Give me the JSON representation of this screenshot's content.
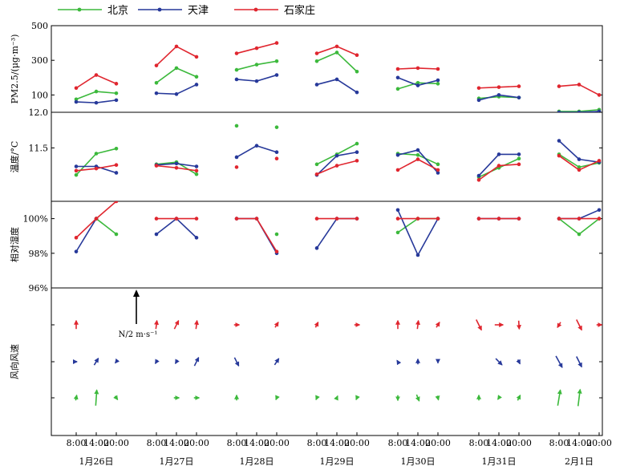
{
  "chart_data": {
    "type": "line",
    "legend": {
      "placement": "top",
      "entries": [
        {
          "name": "北京",
          "color": "#3cb93c"
        },
        {
          "name": "天津",
          "color": "#27399a"
        },
        {
          "name": "石家庄",
          "color": "#e0262f"
        }
      ]
    },
    "x_time_labels": [
      "8:00",
      "14:00",
      "20:00"
    ],
    "dates": [
      "1月26日",
      "1月27日",
      "1月28日",
      "1月29日",
      "1月30日",
      "1月31日",
      "2月1日"
    ],
    "panels": [
      {
        "ylabel": "PM2.5/(μg·m⁻³)",
        "yticks": [
          "500",
          "300",
          "100"
        ],
        "tick_values": [
          500,
          300,
          100
        ],
        "ylim": [
          0,
          500
        ],
        "series": [
          {
            "name": "北京",
            "values": [
              [
                75,
                120,
                110
              ],
              [
                170,
                255,
                205
              ],
              [
                245,
                275,
                295
              ],
              [
                295,
                345,
                235
              ],
              [
                135,
                170,
                165
              ],
              [
                80,
                90,
                85
              ],
              [
                5,
                5,
                15
              ]
            ]
          },
          {
            "name": "天津",
            "values": [
              [
                60,
                55,
                70
              ],
              [
                110,
                105,
                160
              ],
              [
                190,
                180,
                215
              ],
              [
                160,
                190,
                115
              ],
              [
                200,
                155,
                185
              ],
              [
                70,
                100,
                85
              ],
              [
                0,
                0,
                5
              ]
            ]
          },
          {
            "name": "石家庄",
            "values": [
              [
                140,
                215,
                165
              ],
              [
                270,
                380,
                320
              ],
              [
                340,
                370,
                400
              ],
              [
                340,
                380,
                330
              ],
              [
                250,
                255,
                250
              ],
              [
                140,
                145,
                150
              ],
              [
                150,
                160,
                100
              ]
            ]
          }
        ]
      },
      {
        "ylabel": "温度/°C",
        "yticks": [
          "12.0",
          "11.5"
        ],
        "tick_values": [
          12.0,
          11.5
        ],
        "ylim": [
          10.75,
          12.0
        ],
        "series": [
          {
            "name": "北京",
            "values": [
              [
                11.12,
                11.42,
                11.49
              ],
              [
                11.27,
                11.3,
                11.13
              ],
              [
                11.81,
                null,
                11.79
              ],
              [
                11.27,
                11.41,
                11.56
              ],
              [
                11.42,
                11.4,
                11.27
              ],
              [
                11.09,
                11.22,
                11.35
              ],
              [
                11.41,
                11.23,
                11.29
              ]
            ]
          },
          {
            "name": "天津",
            "values": [
              [
                11.24,
                11.24,
                11.15
              ],
              [
                11.26,
                11.28,
                11.24
              ],
              [
                11.37,
                11.53,
                11.44
              ],
              [
                11.12,
                11.39,
                11.44
              ],
              [
                11.4,
                11.47,
                11.15
              ],
              [
                11.11,
                11.41,
                11.41
              ],
              [
                11.6,
                11.34,
                11.3
              ]
            ]
          },
          {
            "name": "石家庄",
            "values": [
              [
                11.18,
                11.21,
                11.26
              ],
              [
                11.25,
                11.22,
                11.18
              ],
              [
                11.23,
                null,
                11.35
              ],
              [
                11.13,
                11.25,
                11.32
              ],
              [
                11.19,
                11.34,
                11.19
              ],
              [
                11.05,
                11.25,
                11.27
              ],
              [
                11.39,
                11.19,
                11.32
              ]
            ]
          }
        ]
      },
      {
        "ylabel": "相对湿度",
        "yticks": [
          "100%",
          "98%",
          "96%"
        ],
        "tick_values": [
          100,
          98,
          96
        ],
        "ylim": [
          96,
          101
        ],
        "series": [
          {
            "name": "北京",
            "values": [
              [
                null,
                100.0,
                99.1
              ],
              [
                null,
                null,
                null
              ],
              [
                null,
                null,
                99.1
              ],
              [
                null,
                null,
                null
              ],
              [
                99.2,
                100.0,
                100.0
              ],
              [
                null,
                null,
                null
              ],
              [
                100.0,
                99.1,
                100.0
              ]
            ]
          },
          {
            "name": "天津",
            "values": [
              [
                98.1,
                100.0,
                null
              ],
              [
                99.1,
                100.0,
                98.9
              ],
              [
                100.0,
                100.0,
                98.0
              ],
              [
                98.3,
                100.0,
                100.0
              ],
              [
                100.5,
                97.9,
                100.0
              ],
              [
                100.0,
                100.0,
                100.0
              ],
              [
                100.0,
                100.0,
                100.5
              ]
            ]
          },
          {
            "name": "石家庄",
            "values": [
              [
                98.9,
                100.0,
                101.0
              ],
              [
                100.0,
                100.0,
                100.0
              ],
              [
                100.0,
                100.0,
                98.1
              ],
              [
                100.0,
                100.0,
                100.0
              ],
              [
                100.0,
                100.0,
                100.0
              ],
              [
                100.0,
                100.0,
                100.0
              ],
              [
                100.0,
                100.0,
                100.0
              ]
            ]
          }
        ]
      },
      {
        "ylabel": "风向风速",
        "scale_label": "N/2 m·s⁻¹",
        "series": [
          {
            "name": "北京",
            "vectors": [
              [
                [
                  0.2,
                  1.0
                ],
                [
                  0.2,
                  3.0
                ],
                [
                  0.5,
                  -0.7
                ]
              ],
              [
                null,
                [
                  1.0,
                  0.0
                ],
                [
                  1.0,
                  0.0
                ]
              ],
              [
                [
                  0.0,
                  1.0
                ],
                null,
                [
                  -0.3,
                  -0.7
                ]
              ],
              [
                [
                  -0.3,
                  -0.7
                ],
                [
                  0.3,
                  0.7
                ],
                [
                  -0.3,
                  -0.7
                ]
              ],
              [
                [
                  0.0,
                  -1.0
                ],
                [
                  0.5,
                  -1.2
                ],
                [
                  0.2,
                  -0.8
                ]
              ],
              [
                [
                  0.0,
                  1.0
                ],
                [
                  -0.4,
                  -0.6
                ],
                [
                  0.5,
                  1.0
                ]
              ],
              [
                [
                  0.5,
                  3.0
                ],
                [
                  0.4,
                  3.2
                ],
                null
              ]
            ]
          },
          {
            "name": "天津",
            "vectors": [
              [
                [
                  0.3,
                  0.0
                ],
                [
                  0.8,
                  1.3
                ],
                [
                  -0.4,
                  -0.5
                ]
              ],
              [
                [
                  -0.4,
                  -0.7
                ],
                [
                  -0.4,
                  -0.7
                ],
                [
                  0.8,
                  1.6
                ]
              ],
              [
                [
                  0.8,
                  -1.6
                ],
                null,
                [
                  0.8,
                  1.2
                ]
              ],
              [
                null,
                null,
                null
              ],
              [
                [
                  -0.3,
                  0.5
                ],
                [
                  0.0,
                  1.0
                ],
                [
                  0.0,
                  -0.5
                ]
              ],
              [
                null,
                [
                  1.2,
                  -1.2
                ],
                [
                  0.4,
                  -0.8
                ]
              ],
              [
                [
                  1.2,
                  -2.2
                ],
                [
                  1.0,
                  -2.0
                ],
                null
              ]
            ]
          },
          {
            "name": "石家庄",
            "vectors": [
              [
                [
                  0.0,
                  1.6
                ],
                null,
                null
              ],
              [
                [
                  0.2,
                  1.6
                ],
                [
                  0.8,
                  1.6
                ],
                [
                  0.2,
                  1.6
                ]
              ],
              [
                [
                  1.0,
                  0.0
                ],
                null,
                [
                  0.6,
                  1.0
                ]
              ],
              [
                [
                  0.5,
                  1.0
                ],
                null,
                [
                  1.0,
                  0.0
                ]
              ],
              [
                [
                  0.0,
                  1.6
                ],
                [
                  0.2,
                  1.6
                ],
                [
                  0.6,
                  1.0
                ]
              ],
              [
                [
                  1.0,
                  -2.0
                ],
                [
                  1.6,
                  0.0
                ],
                [
                  0.1,
                  -1.6
                ]
              ],
              [
                [
                  -0.6,
                  -1.0
                ],
                [
                  1.0,
                  -2.0
                ],
                [
                  1.0,
                  0.0
                ]
              ]
            ]
          }
        ]
      }
    ],
    "colors": {
      "北京": "#3cb93c",
      "天津": "#27399a",
      "石家庄": "#e0262f"
    }
  }
}
